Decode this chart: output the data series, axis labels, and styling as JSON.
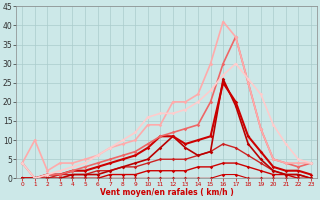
{
  "xlabel": "Vent moyen/en rafales ( km/h )",
  "bg_color": "#cce8e8",
  "grid_color": "#aacccc",
  "xlim": [
    -0.5,
    23.5
  ],
  "ylim": [
    0,
    45
  ],
  "yticks": [
    0,
    5,
    10,
    15,
    20,
    25,
    30,
    35,
    40,
    45
  ],
  "xticks": [
    0,
    1,
    2,
    3,
    4,
    5,
    6,
    7,
    8,
    9,
    10,
    11,
    12,
    13,
    14,
    15,
    16,
    17,
    18,
    19,
    20,
    21,
    22,
    23
  ],
  "lines": [
    {
      "x": [
        0,
        1,
        2,
        3,
        4,
        5,
        6,
        7,
        8,
        9,
        10,
        11,
        12,
        13,
        14,
        15,
        16,
        17,
        18,
        19,
        20,
        21,
        22,
        23
      ],
      "y": [
        0,
        0,
        0,
        0,
        0,
        0,
        0,
        0,
        0,
        0,
        0,
        0,
        0,
        0,
        0,
        0,
        1,
        1,
        0,
        0,
        0,
        0,
        0,
        0
      ],
      "color": "#cc0000",
      "lw": 0.8
    },
    {
      "x": [
        0,
        1,
        2,
        3,
        4,
        5,
        6,
        7,
        8,
        9,
        10,
        11,
        12,
        13,
        14,
        15,
        16,
        17,
        18,
        19,
        20,
        21,
        22,
        23
      ],
      "y": [
        0,
        0,
        0,
        0,
        0,
        0,
        0,
        1,
        1,
        1,
        2,
        2,
        2,
        2,
        3,
        3,
        4,
        4,
        3,
        2,
        1,
        1,
        0,
        0
      ],
      "color": "#cc0000",
      "lw": 1.0
    },
    {
      "x": [
        0,
        1,
        2,
        3,
        4,
        5,
        6,
        7,
        8,
        9,
        10,
        11,
        12,
        13,
        14,
        15,
        16,
        17,
        18,
        19,
        20,
        21,
        22,
        23
      ],
      "y": [
        0,
        0,
        0,
        1,
        1,
        1,
        2,
        2,
        3,
        3,
        4,
        5,
        5,
        5,
        6,
        7,
        9,
        8,
        6,
        4,
        2,
        1,
        1,
        0
      ],
      "color": "#cc2222",
      "lw": 1.0
    },
    {
      "x": [
        0,
        1,
        2,
        3,
        4,
        5,
        6,
        7,
        8,
        9,
        10,
        11,
        12,
        13,
        14,
        15,
        16,
        17,
        18,
        19,
        20,
        21,
        22,
        23
      ],
      "y": [
        0,
        0,
        0,
        0,
        1,
        1,
        1,
        2,
        3,
        4,
        5,
        8,
        11,
        8,
        6,
        7,
        26,
        19,
        9,
        5,
        2,
        1,
        1,
        0
      ],
      "color": "#bb0000",
      "lw": 1.2
    },
    {
      "x": [
        0,
        1,
        2,
        3,
        4,
        5,
        6,
        7,
        8,
        9,
        10,
        11,
        12,
        13,
        14,
        15,
        16,
        17,
        18,
        19,
        20,
        21,
        22,
        23
      ],
      "y": [
        0,
        0,
        1,
        1,
        2,
        2,
        3,
        4,
        5,
        6,
        8,
        11,
        11,
        9,
        10,
        11,
        25,
        20,
        11,
        7,
        3,
        2,
        2,
        1
      ],
      "color": "#cc0000",
      "lw": 1.5
    },
    {
      "x": [
        0,
        1,
        2,
        3,
        4,
        5,
        6,
        7,
        8,
        9,
        10,
        11,
        12,
        13,
        14,
        15,
        16,
        17,
        18,
        19,
        20,
        21,
        22,
        23
      ],
      "y": [
        4,
        0,
        1,
        1,
        2,
        3,
        4,
        5,
        6,
        7,
        9,
        11,
        12,
        13,
        14,
        20,
        30,
        37,
        25,
        13,
        5,
        4,
        3,
        4
      ],
      "color": "#ee6666",
      "lw": 1.2
    },
    {
      "x": [
        0,
        1,
        2,
        3,
        4,
        5,
        6,
        7,
        8,
        9,
        10,
        11,
        12,
        13,
        14,
        15,
        16,
        17,
        18,
        19,
        20,
        21,
        22,
        23
      ],
      "y": [
        4,
        10,
        2,
        4,
        4,
        5,
        6,
        8,
        9,
        10,
        14,
        14,
        20,
        20,
        22,
        30,
        41,
        37,
        25,
        13,
        5,
        4,
        4,
        4
      ],
      "color": "#ffaaaa",
      "lw": 1.2
    },
    {
      "x": [
        0,
        1,
        2,
        3,
        4,
        5,
        6,
        7,
        8,
        9,
        10,
        11,
        12,
        13,
        14,
        15,
        16,
        17,
        18,
        19,
        20,
        21,
        22,
        23
      ],
      "y": [
        4,
        0,
        1,
        2,
        3,
        4,
        6,
        8,
        10,
        12,
        16,
        17,
        17,
        18,
        20,
        23,
        27,
        30,
        26,
        22,
        14,
        9,
        5,
        4
      ],
      "color": "#ffcccc",
      "lw": 1.2
    }
  ]
}
